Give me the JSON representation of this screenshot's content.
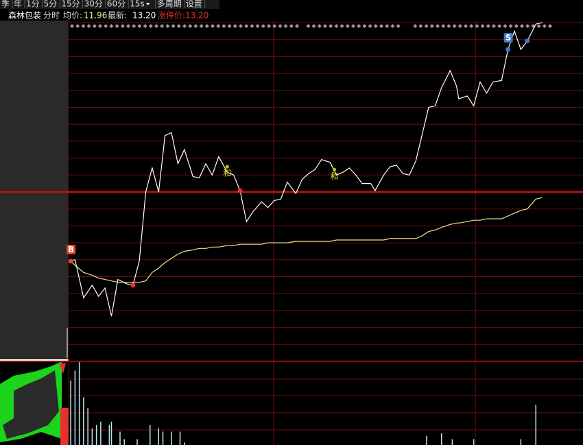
{
  "toolbar": [
    "季",
    "年",
    "1分",
    "5分",
    "15分",
    "30分",
    "60分",
    "15s",
    "多周期",
    "设置"
  ],
  "header": {
    "name": "森林包装",
    "mode": "分时",
    "avg_label": "均价:",
    "avg_value": "11.96",
    "last_label": "最新:",
    "last_value": "13.20",
    "limit": "涨停价:13.20"
  },
  "chart_data": {
    "type": "line",
    "x": [
      1,
      3,
      7,
      11,
      14,
      17,
      20,
      23,
      27,
      30,
      33,
      36,
      39,
      42,
      45,
      48,
      51,
      54,
      58,
      61,
      64,
      67,
      70,
      74,
      77,
      80,
      83,
      86,
      90,
      93,
      96,
      99,
      102,
      106,
      109,
      112,
      115,
      118,
      122,
      125,
      128,
      131,
      134,
      137,
      141,
      143,
      147,
      150,
      153,
      156,
      159,
      162,
      165,
      168,
      171,
      174,
      178,
      181,
      182,
      186,
      189,
      192,
      195,
      198,
      202,
      205,
      208,
      211,
      214,
      218,
      221
    ],
    "xlim": [
      0,
      240
    ],
    "ylim": [
      10.8,
      13.2
    ],
    "prev_close": 12.0,
    "series": [
      {
        "name": "price",
        "color": "#ffffff",
        "values": [
          11.51,
          11.52,
          11.25,
          11.34,
          11.26,
          11.32,
          11.12,
          11.38,
          11.35,
          11.34,
          11.51,
          12.0,
          12.17,
          12.0,
          12.4,
          12.42,
          12.2,
          12.3,
          12.11,
          12.1,
          12.2,
          12.12,
          12.25,
          12.14,
          12.12,
          12.01,
          11.79,
          11.86,
          11.93,
          11.89,
          11.94,
          11.95,
          12.07,
          11.99,
          12.09,
          12.13,
          12.16,
          12.23,
          12.21,
          12.12,
          12.14,
          12.17,
          12.12,
          12.06,
          12.06,
          12.01,
          12.12,
          12.18,
          12.19,
          12.13,
          12.12,
          12.22,
          12.41,
          12.6,
          12.61,
          12.74,
          12.86,
          12.75,
          12.66,
          12.68,
          12.61,
          12.78,
          12.7,
          12.78,
          12.79,
          13.01,
          13.14,
          13.01,
          13.07,
          13.19,
          13.2
        ]
      },
      {
        "name": "avg",
        "color": "#f0e68c",
        "values": [
          11.51,
          11.48,
          11.43,
          11.41,
          11.39,
          11.38,
          11.37,
          11.36,
          11.36,
          11.36,
          11.36,
          11.37,
          11.43,
          11.46,
          11.5,
          11.53,
          11.56,
          11.58,
          11.59,
          11.6,
          11.6,
          11.61,
          11.61,
          11.62,
          11.62,
          11.63,
          11.63,
          11.63,
          11.63,
          11.64,
          11.64,
          11.64,
          11.64,
          11.65,
          11.65,
          11.65,
          11.65,
          11.65,
          11.65,
          11.66,
          11.66,
          11.66,
          11.66,
          11.66,
          11.66,
          11.66,
          11.66,
          11.67,
          11.67,
          11.67,
          11.67,
          11.67,
          11.69,
          11.72,
          11.73,
          11.75,
          11.77,
          11.78,
          11.78,
          11.79,
          11.8,
          11.8,
          11.81,
          11.81,
          11.81,
          11.83,
          11.85,
          11.87,
          11.88,
          11.95,
          11.96
        ]
      }
    ],
    "signals": [
      {
        "label": "B",
        "color": "#e8402f",
        "x": 1,
        "y": 11.51
      },
      {
        "label": "S",
        "color": "#3d78c8",
        "x": 205,
        "y": 13.01
      }
    ],
    "dots": [
      {
        "color": "#e83030",
        "x": 30,
        "y": 11.34
      },
      {
        "color": "#e83030",
        "x": 80,
        "y": 12.01
      },
      {
        "color": "#3d78c8",
        "x": 214,
        "y": 13.07
      }
    ],
    "notes": [
      {
        "label": "和",
        "x": 74,
        "y": 12.14
      },
      {
        "label": "和",
        "x": 124,
        "y": 12.12
      }
    ],
    "volume": {
      "color": "#bfe6ef",
      "vlim": [
        0,
        100
      ],
      "x": [
        1,
        3,
        5,
        7,
        9,
        11,
        13,
        15,
        19,
        20,
        24,
        26,
        32,
        38,
        42,
        44,
        48,
        52,
        54,
        167,
        174,
        179,
        189,
        211,
        218
      ],
      "values": [
        77,
        89,
        99,
        57,
        44,
        20,
        24,
        28,
        24,
        28,
        16,
        7,
        7,
        24,
        20,
        16,
        16,
        16,
        3,
        11,
        14,
        7,
        7,
        7,
        48
      ]
    }
  }
}
